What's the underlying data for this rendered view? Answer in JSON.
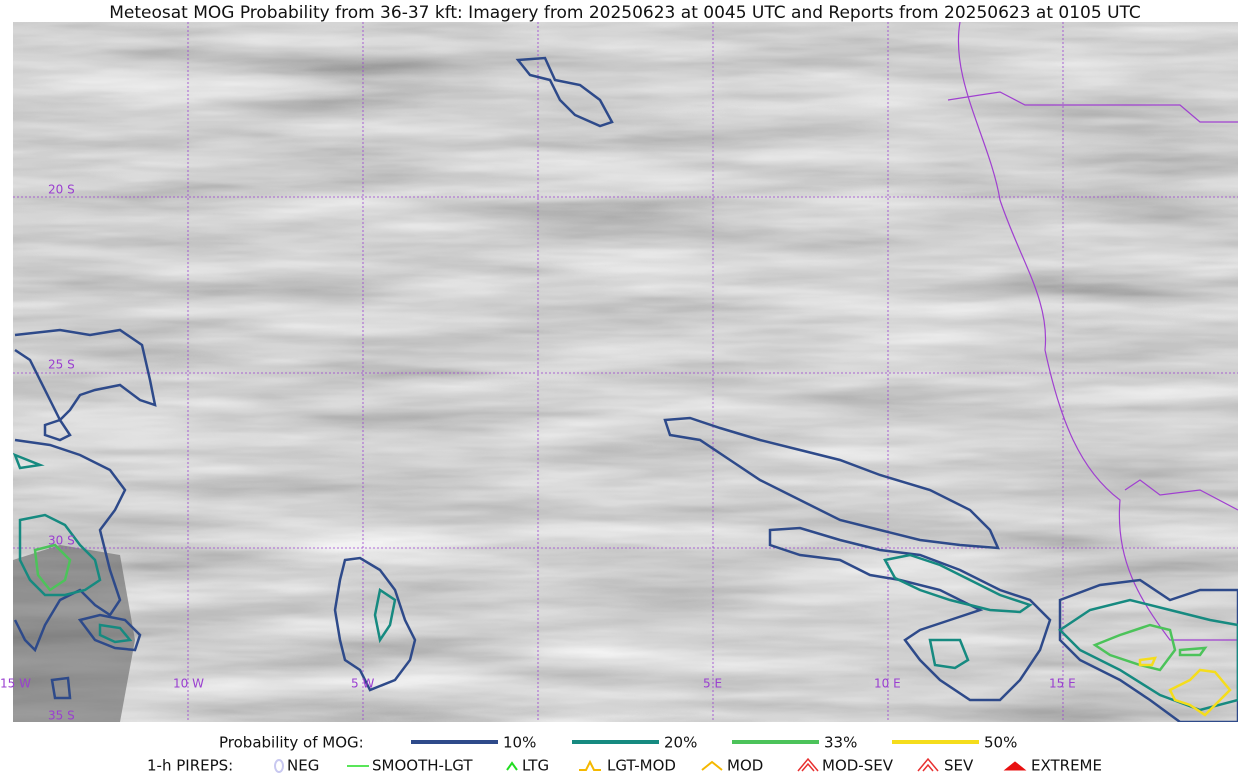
{
  "title": "Meteosat MOG Probability from 36-37 kft: Imagery from 20250623 at 0045 UTC and Reports from 20250623 at 0105 UTC",
  "map": {
    "lat_labels": [
      "20 S",
      "25 S",
      "30 S",
      "35 S"
    ],
    "lon_labels": [
      "15 W",
      "10 W",
      "5 W",
      "5 E",
      "10 E",
      "15 E"
    ]
  },
  "legend": {
    "probability": {
      "label": "Probability of MOG:",
      "items": [
        {
          "label": "10%",
          "color": "#2e4a8a"
        },
        {
          "label": "20%",
          "color": "#168a80"
        },
        {
          "label": "33%",
          "color": "#4cc35a"
        },
        {
          "label": "50%",
          "color": "#f5dd1c"
        }
      ]
    },
    "pireps": {
      "label": "1-h PIREPS:",
      "items": [
        {
          "label": "NEG",
          "color": "#c8c8f0"
        },
        {
          "label": "SMOOTH-LGT",
          "color": "#22dd22"
        },
        {
          "label": "LTG",
          "color": "#22dd22"
        },
        {
          "label": "LGT-MOD",
          "color": "#f5b800"
        },
        {
          "label": "MOD",
          "color": "#f5b800"
        },
        {
          "label": "MOD-SEV",
          "color": "#e83030"
        },
        {
          "label": "SEV",
          "color": "#e83030"
        },
        {
          "label": "EXTREME",
          "color": "#e81010"
        }
      ]
    }
  }
}
